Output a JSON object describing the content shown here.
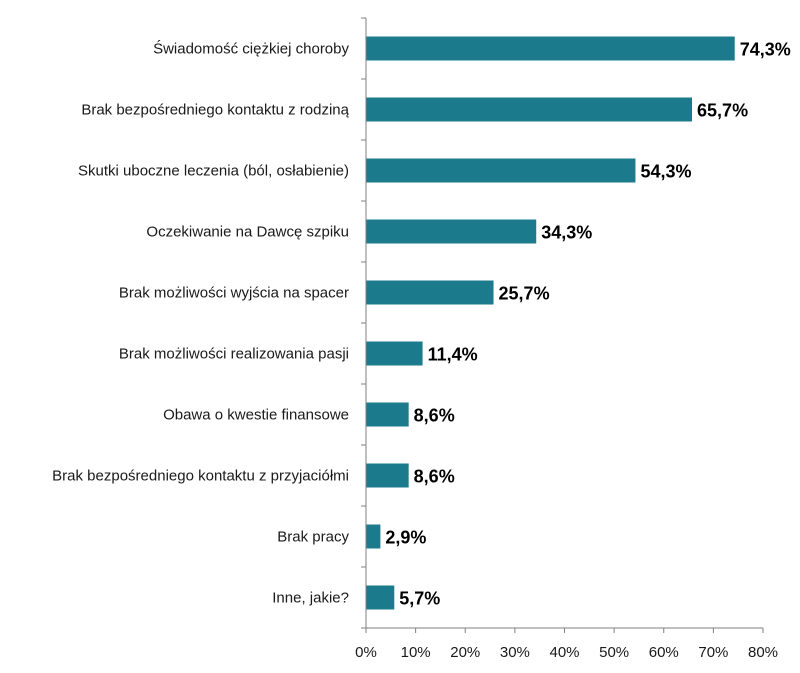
{
  "chart_data": {
    "type": "bar",
    "orientation": "horizontal",
    "title": "",
    "xlabel": "",
    "ylabel": "",
    "categories": [
      "Świadomość ciężkiej choroby",
      "Brak bezpośredniego kontaktu z rodziną",
      "Skutki uboczne leczenia (ból, osłabienie)",
      "Oczekiwanie na Dawcę szpiku",
      "Brak możliwości wyjścia na spacer",
      "Brak możliwości realizowania pasji",
      "Obawa o kwestie finansowe",
      "Brak bezpośredniego kontaktu z przyjaciółmi",
      "Brak pracy",
      "Inne, jakie?"
    ],
    "values": [
      74.3,
      65.7,
      54.3,
      34.3,
      25.7,
      11.4,
      8.6,
      8.6,
      2.9,
      5.7
    ],
    "value_labels": [
      "74,3%",
      "65,7%",
      "54,3%",
      "34,3%",
      "25,7%",
      "11,4%",
      "8,6%",
      "8,6%",
      "2,9%",
      "5,7%"
    ],
    "xlim": [
      0,
      80
    ],
    "xticks": [
      0,
      10,
      20,
      30,
      40,
      50,
      60,
      70,
      80
    ],
    "xtick_labels": [
      "0%",
      "10%",
      "20%",
      "30%",
      "40%",
      "50%",
      "60%",
      "70%",
      "80%"
    ],
    "grid": false,
    "legend": "none",
    "bar_color": "#1b7b8c",
    "axis_color": "#7f7f7f"
  }
}
